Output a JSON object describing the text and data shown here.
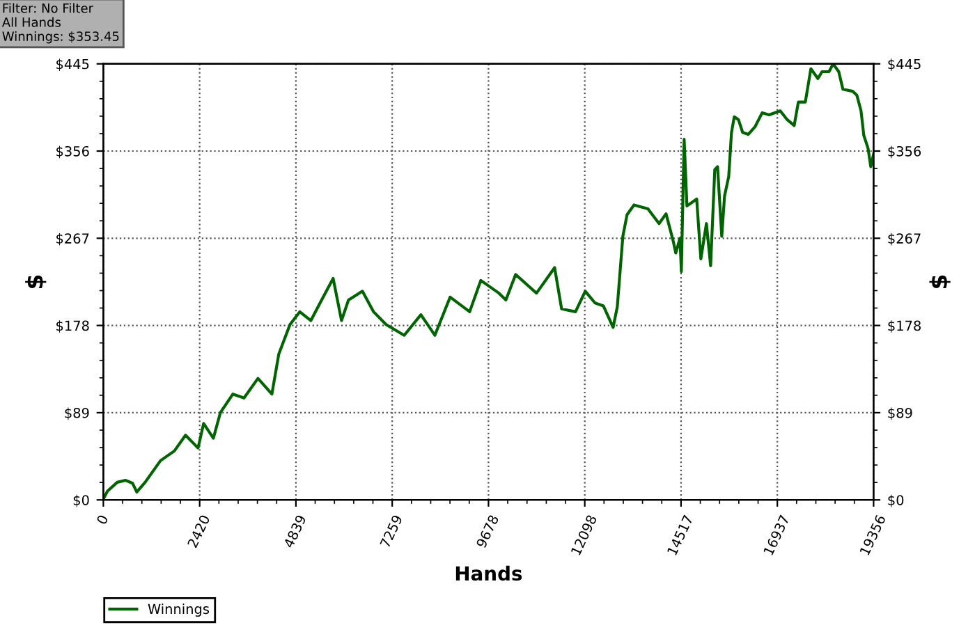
{
  "chart_data": {
    "type": "line",
    "xlabel": "Hands",
    "ylabel": "$",
    "y2label": "$",
    "annotations": [
      "Filter: No Filter",
      "All Hands",
      "Winnings: $353.45"
    ],
    "xlim": [
      0,
      19356
    ],
    "xticks": [
      0,
      2420,
      4839,
      7259,
      9678,
      12098,
      14517,
      16937,
      19356
    ],
    "ylim": [
      0,
      445
    ],
    "yticks": [
      {
        "value": 0,
        "label": "$0"
      },
      {
        "value": 89,
        "label": "$89"
      },
      {
        "value": 178,
        "label": "$178"
      },
      {
        "value": 267,
        "label": "$267"
      },
      {
        "value": 356,
        "label": "$356"
      },
      {
        "value": 445,
        "label": "$445"
      }
    ],
    "y2lim": [
      0,
      445
    ],
    "y2ticks": [
      {
        "value": 0,
        "label": "$0"
      },
      {
        "value": 89,
        "label": "$89"
      },
      {
        "value": 178,
        "label": "$178"
      },
      {
        "value": 267,
        "label": "$267"
      },
      {
        "value": 356,
        "label": "$356"
      },
      {
        "value": 445,
        "label": "$445"
      }
    ],
    "grid": true,
    "legend": "bottom left",
    "series": [
      {
        "name": "Winnings",
        "color": "#006400",
        "x": [
          0,
          105,
          350,
          560,
          735,
          840,
          1050,
          1435,
          1785,
          2065,
          2380,
          2520,
          2765,
          2940,
          3255,
          3535,
          3885,
          4235,
          4410,
          4690,
          4935,
          5215,
          5460,
          5775,
          5985,
          6160,
          6510,
          6790,
          7105,
          7560,
          7980,
          8330,
          8715,
          9205,
          9485,
          9940,
          10115,
          10360,
          10885,
          11340,
          11515,
          11865,
          12110,
          12355,
          12565,
          12810,
          12915,
          13055,
          13160,
          13335,
          13685,
          13965,
          14140,
          14315,
          14385,
          14490,
          14525,
          14595,
          14665,
          14910,
          15015,
          15155,
          15260,
          15365,
          15435,
          15540,
          15610,
          15715,
          15785,
          15855,
          15960,
          16065,
          16205,
          16380,
          16555,
          16730,
          17010,
          17185,
          17360,
          17465,
          17640,
          17780,
          17955,
          18060,
          18235,
          18340,
          18480,
          18585,
          18830,
          18935,
          19040,
          19110,
          19215,
          19285,
          19356
        ],
        "values": [
          1,
          9,
          18,
          20,
          17,
          8,
          18,
          40,
          50,
          66,
          53,
          78,
          63,
          89,
          108,
          104,
          124,
          108,
          149,
          179,
          192,
          183,
          202,
          226,
          183,
          204,
          213,
          192,
          179,
          168,
          189,
          168,
          207,
          192,
          224,
          211,
          204,
          230,
          211,
          237,
          195,
          192,
          213,
          201,
          198,
          176,
          197,
          269,
          291,
          301,
          297,
          282,
          292,
          265,
          252,
          267,
          233,
          368,
          300,
          307,
          246,
          282,
          239,
          337,
          340,
          269,
          310,
          330,
          375,
          391,
          388,
          375,
          373,
          381,
          395,
          393,
          397,
          388,
          382,
          406,
          406,
          440,
          430,
          437,
          437,
          445,
          437,
          419,
          417,
          413,
          397,
          372,
          359,
          340,
          353
        ]
      }
    ]
  }
}
